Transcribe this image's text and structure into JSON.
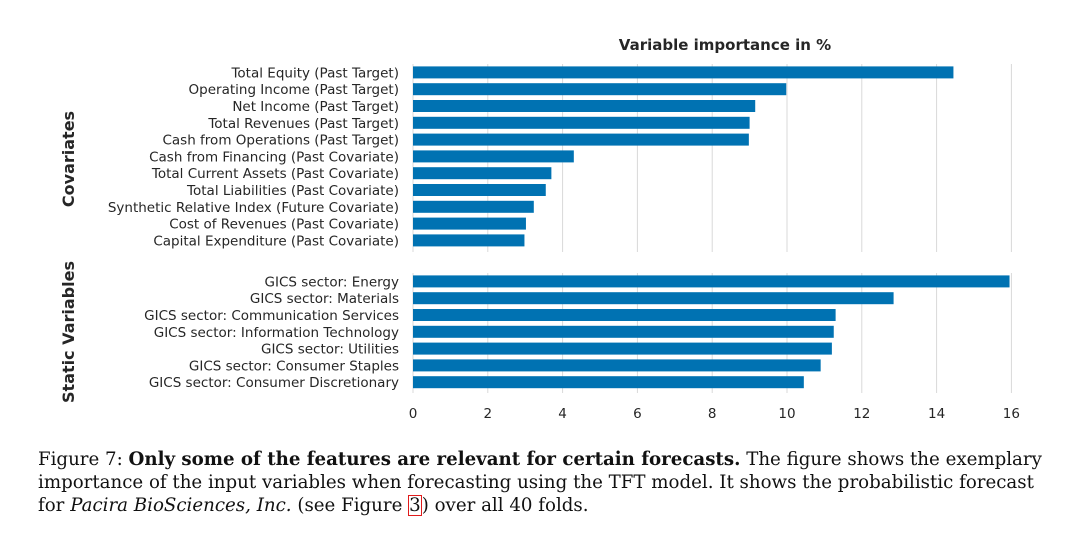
{
  "chart_data": {
    "type": "bar",
    "orientation": "horizontal",
    "title": "Variable importance in %",
    "xlim": [
      0,
      16.5
    ],
    "xticks": [
      0,
      2,
      4,
      6,
      8,
      10,
      12,
      14,
      16
    ],
    "grid": true,
    "bar_color": "#0072b2",
    "groups": [
      {
        "label": "Covariates",
        "categories": [
          "Total Equity (Past Target)",
          "Operating Income (Past Target)",
          "Net Income (Past Target)",
          "Total Revenues (Past Target)",
          "Cash from Operations (Past Target)",
          "Cash from Financing (Past Covariate)",
          "Total Current Assets (Past Covariate)",
          "Total Liabilities (Past Covariate)",
          "Synthetic Relative Index (Future Covariate)",
          "Cost of Revenues (Past Covariate)",
          "Capital Expenditure (Past Covariate)"
        ],
        "values": [
          14.45,
          9.98,
          9.15,
          9.0,
          8.98,
          4.3,
          3.7,
          3.55,
          3.23,
          3.02,
          2.98
        ]
      },
      {
        "label": "Static Variables",
        "categories": [
          "GICS sector: Energy",
          "GICS sector: Materials",
          "GICS sector: Communication Services",
          "GICS sector: Information Technology",
          "GICS sector: Utilities",
          "GICS sector: Consumer Staples",
          "GICS sector: Consumer Discretionary"
        ],
        "values": [
          15.95,
          12.85,
          11.3,
          11.25,
          11.2,
          10.9,
          10.45
        ]
      }
    ]
  },
  "caption": {
    "label": "Figure 7:",
    "bold": "Only some of the features are relevant for certain forecasts.",
    "text1": "The figure shows the exemplary importance of the input variables when forecasting using the TFT model. It shows the probabilistic forecast for",
    "italic": "Pacira BioSciences, Inc.",
    "text2": "(see Figure",
    "ref": "3",
    "text3": ") over all 40 folds."
  }
}
